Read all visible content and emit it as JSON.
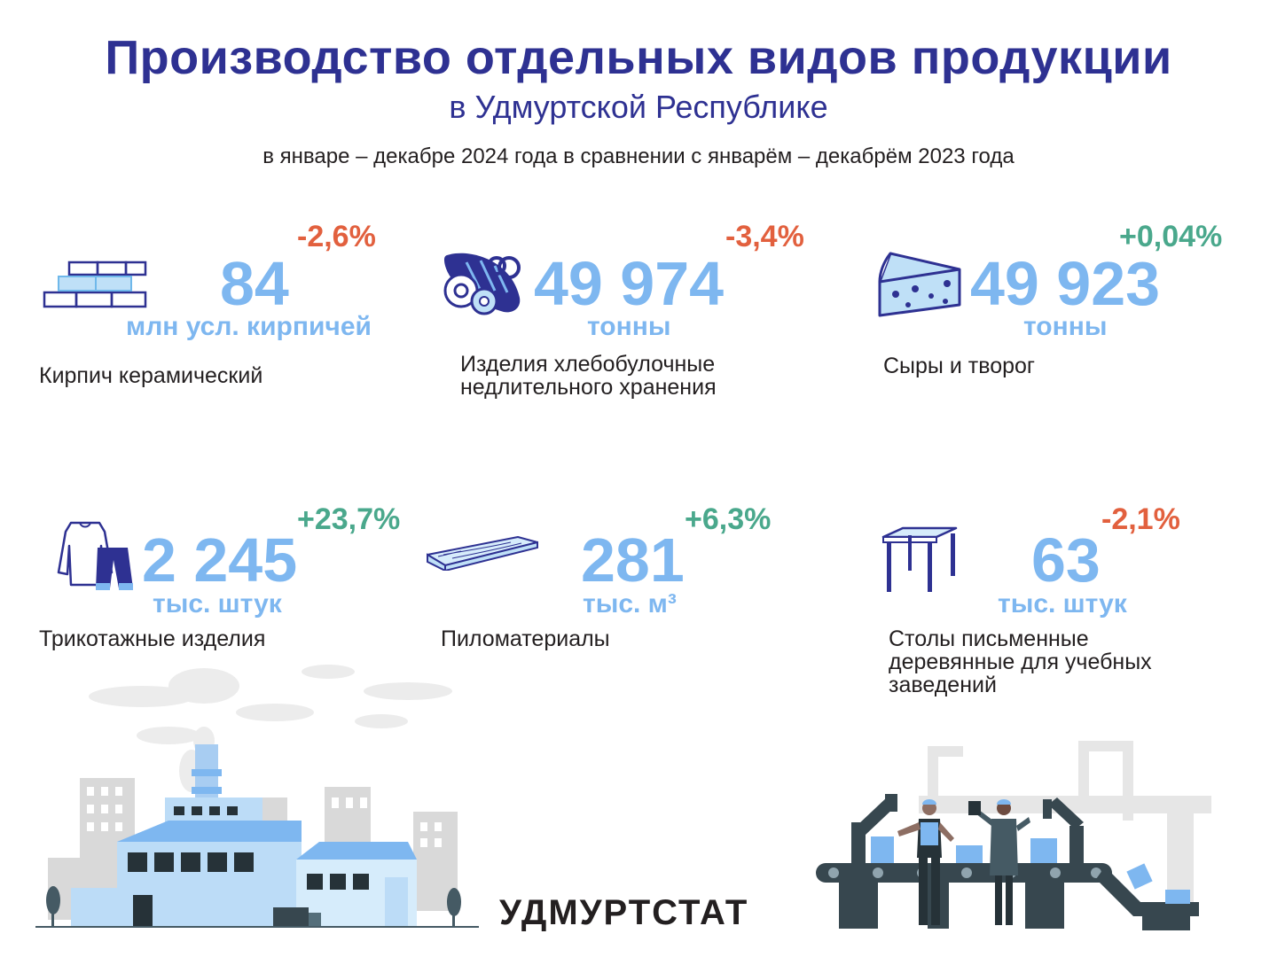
{
  "header": {
    "title": "Производство отдельных видов продукции",
    "subtitle": "в Удмуртской Республике",
    "period": "в январе – декабре 2024 года в сравнении с январём – декабрём 2023 года"
  },
  "products": [
    {
      "value": "84",
      "unit": "млн усл. кирпичей",
      "change": "-2,6%",
      "name": "Кирпич керамический",
      "icon": "brick-wall-icon"
    },
    {
      "value": "49 974",
      "unit": "тонны",
      "change": "-3,4%",
      "name_lines": [
        "Изделия хлебобулочные",
        "недлительного хранения"
      ],
      "icon": "bread-icon"
    },
    {
      "value": "49 923",
      "unit": "тонны",
      "change": "+0,04%",
      "name": "Сыры и творог",
      "icon": "cheese-icon"
    },
    {
      "value": "2 245",
      "unit": "тыс. штук",
      "change": "+23,7%",
      "name": "Трикотажные изделия",
      "icon": "clothes-icon"
    },
    {
      "value": "281",
      "unit": "тыс. м³",
      "change": "+6,3%",
      "name": "Пиломатериалы",
      "icon": "lumber-icon"
    },
    {
      "value": "63",
      "unit": "тыс. штук",
      "change": "-2,1%",
      "name_lines": [
        "Столы письменные",
        "деревянные для учебных",
        "заведений"
      ],
      "icon": "desk-icon"
    }
  ],
  "colors": {
    "title": "#2e3192",
    "value": "#7eb7f0",
    "negative": "#e2603e",
    "positive": "#4aa88c"
  },
  "footer": {
    "brand": "УДМУРТСТАТ"
  }
}
